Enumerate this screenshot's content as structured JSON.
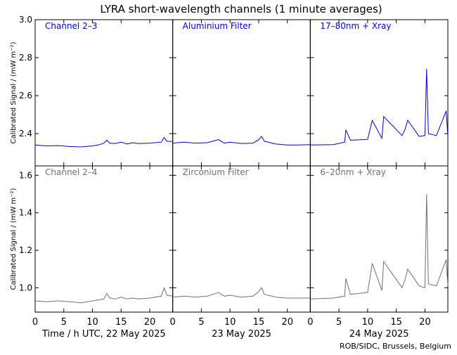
{
  "title": "LYRA short-wavelength channels (1 minute averages)",
  "credit": "ROB/SIDC, Brussels, Belgium",
  "colors": {
    "top": "#0000d0",
    "bottom": "#707070",
    "axis": "#000000"
  },
  "x_axis": {
    "ticks": [
      0,
      5,
      10,
      15,
      20
    ],
    "tick_labels": [
      "0",
      "5",
      "10",
      "15",
      "20"
    ],
    "range": [
      0,
      24
    ],
    "day_labels": [
      "Time / h UTC, 22 May 2025",
      "23 May 2025",
      "24 May 2025"
    ]
  },
  "chart_data": [
    {
      "type": "line",
      "ylabel": "Calibrated Signal / (mW m⁻²)",
      "ylim": [
        2.23,
        3.0
      ],
      "yticks": [
        2.4,
        2.6,
        2.8,
        3.0
      ],
      "ytick_labels": [
        "2.4",
        "2.6",
        "2.8",
        "3.0"
      ],
      "series": [
        {
          "name": "Channel 2–3",
          "x": [
            0,
            2,
            4,
            6,
            8,
            10,
            11,
            12,
            12.5,
            13,
            14,
            15,
            16,
            17,
            18,
            20,
            22,
            22.5,
            23,
            24
          ],
          "values": [
            2.34,
            2.335,
            2.337,
            2.332,
            2.33,
            2.335,
            2.34,
            2.35,
            2.365,
            2.35,
            2.348,
            2.355,
            2.345,
            2.352,
            2.348,
            2.35,
            2.355,
            2.38,
            2.36,
            2.358
          ]
        },
        {
          "name": "Aluminium Filter",
          "x": [
            0,
            2,
            4,
            6,
            7,
            8,
            9,
            10,
            12,
            14,
            15,
            15.5,
            16,
            18,
            20,
            22,
            24
          ],
          "values": [
            2.35,
            2.355,
            2.35,
            2.352,
            2.36,
            2.368,
            2.35,
            2.355,
            2.348,
            2.35,
            2.368,
            2.385,
            2.36,
            2.345,
            2.34,
            2.34,
            2.342
          ]
        },
        {
          "name": "17–80nm + Xray",
          "x": [
            0,
            4,
            6,
            6.2,
            7,
            10,
            10.8,
            12.5,
            12.8,
            16,
            16.5,
            17,
            19,
            20,
            20.3,
            20.6,
            22,
            23.7,
            24
          ],
          "values": [
            2.34,
            2.342,
            2.355,
            2.42,
            2.365,
            2.37,
            2.47,
            2.375,
            2.49,
            2.39,
            2.42,
            2.47,
            2.385,
            2.39,
            2.74,
            2.4,
            2.39,
            2.52,
            2.385
          ]
        }
      ]
    },
    {
      "type": "line",
      "ylabel": "Calibrated Signal / (mW m⁻²)",
      "ylim": [
        0.87,
        1.65
      ],
      "yticks": [
        1.0,
        1.2,
        1.4,
        1.6
      ],
      "ytick_labels": [
        "1.0",
        "1.2",
        "1.4",
        "1.6"
      ],
      "series": [
        {
          "name": "Channel 2–4",
          "x": [
            0,
            2,
            4,
            6,
            8,
            10,
            11,
            12,
            12.5,
            13,
            14,
            15,
            16,
            17,
            18,
            20,
            22,
            22.5,
            23,
            24
          ],
          "values": [
            0.93,
            0.925,
            0.93,
            0.925,
            0.92,
            0.93,
            0.935,
            0.94,
            0.97,
            0.945,
            0.94,
            0.95,
            0.94,
            0.945,
            0.94,
            0.945,
            0.955,
            1.0,
            0.96,
            0.955
          ]
        },
        {
          "name": "Zirconium Filter",
          "x": [
            0,
            2,
            4,
            6,
            7,
            8,
            9,
            10,
            12,
            14,
            15,
            15.5,
            16,
            18,
            20,
            22,
            24
          ],
          "values": [
            0.95,
            0.955,
            0.95,
            0.955,
            0.965,
            0.975,
            0.955,
            0.96,
            0.95,
            0.955,
            0.98,
            1.0,
            0.965,
            0.95,
            0.945,
            0.945,
            0.945
          ]
        },
        {
          "name": "6–20nm + Xray",
          "x": [
            0,
            4,
            6,
            6.2,
            7,
            10,
            10.8,
            12.5,
            12.8,
            16,
            16.5,
            17,
            19,
            20,
            20.3,
            20.6,
            22,
            23.7,
            24
          ],
          "values": [
            0.94,
            0.945,
            0.955,
            1.05,
            0.965,
            0.975,
            1.13,
            0.985,
            1.14,
            1.0,
            1.04,
            1.1,
            1.01,
            1.0,
            1.5,
            1.02,
            1.01,
            1.15,
            1.01
          ]
        }
      ]
    }
  ]
}
